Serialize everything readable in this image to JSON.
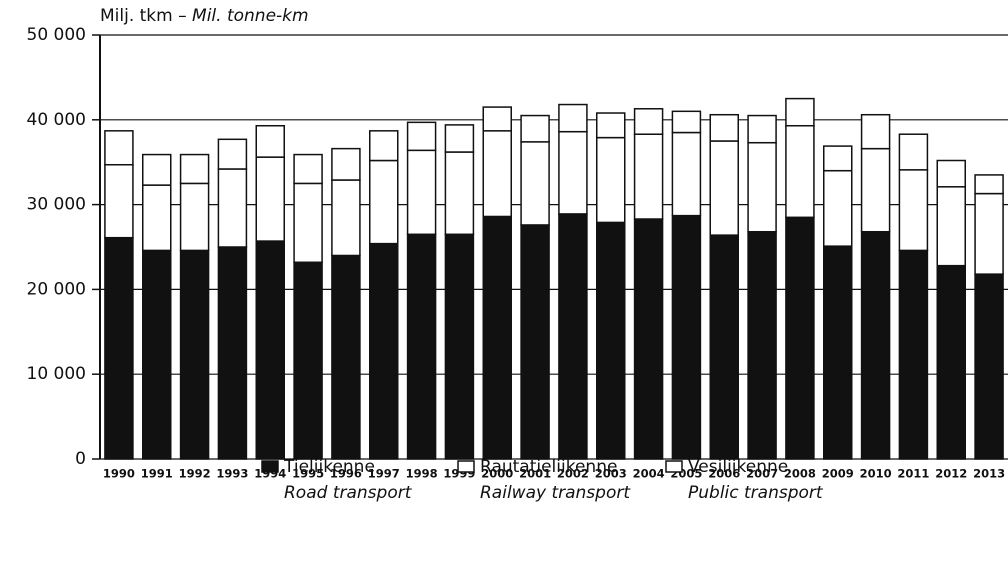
{
  "chart_data": {
    "type": "stacked_bar",
    "y_title": "Milj. tkm –",
    "y_title_en": "Mil. tonne-km",
    "categories": [
      "1990",
      "1991",
      "1992",
      "1993",
      "1994",
      "1995",
      "1996",
      "1997",
      "1998",
      "1999",
      "2000",
      "2001",
      "2002",
      "2003",
      "2004",
      "2005",
      "2006",
      "2007",
      "2008",
      "2009",
      "2010",
      "2011",
      "2012",
      "2013"
    ],
    "series": [
      {
        "name": "Tieliikenne",
        "name_en": "Road transport",
        "color": "#111111",
        "values": [
          26100,
          24600,
          24600,
          25000,
          25700,
          23200,
          24000,
          25400,
          26500,
          26500,
          28600,
          27600,
          28900,
          27900,
          28300,
          28700,
          26400,
          26800,
          28500,
          25100,
          26800,
          24600,
          22800,
          21800
        ]
      },
      {
        "name": "Rautatieliikenne",
        "name_en": "Railway transport",
        "color": "#ffffff",
        "values": [
          8600,
          7700,
          7900,
          9200,
          9900,
          9300,
          8900,
          9800,
          9900,
          9700,
          10100,
          9800,
          9700,
          10000,
          10000,
          9800,
          11100,
          10500,
          10800,
          8900,
          9800,
          9500,
          9300,
          9500
        ]
      },
      {
        "name": "Vesiliikenne",
        "name_en": "Public transport",
        "color": "#ffffff",
        "values": [
          4000,
          3600,
          3400,
          3500,
          3700,
          3400,
          3700,
          3500,
          3300,
          3200,
          2800,
          3100,
          3200,
          2900,
          3000,
          2500,
          3100,
          3200,
          3200,
          2900,
          4000,
          4200,
          3100,
          2200
        ]
      }
    ],
    "ylim": [
      0,
      50000
    ],
    "yticks": [
      0,
      {
        "value": 10000,
        "label": "10 000"
      },
      {
        "value": 20000,
        "label": "20 000"
      },
      {
        "value": 30000,
        "label": "30 000"
      },
      {
        "value": 40000,
        "label": "40 000"
      },
      {
        "value": 50000,
        "label": "50 000"
      }
    ],
    "grid": true
  }
}
